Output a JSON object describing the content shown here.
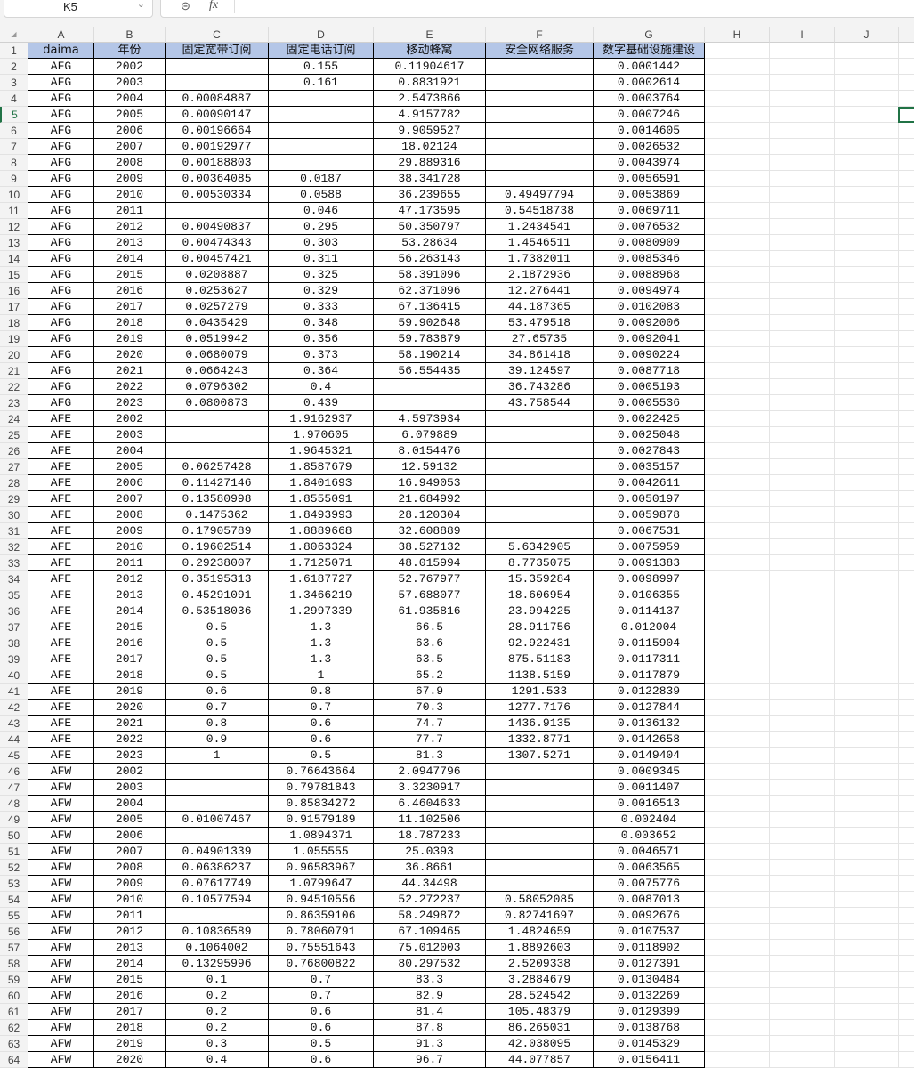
{
  "name_box": "K5",
  "formula_bar": {
    "fx_label": "fx",
    "value": ""
  },
  "columns": [
    "A",
    "B",
    "C",
    "D",
    "E",
    "F",
    "G",
    "H",
    "I",
    "J"
  ],
  "headers": [
    "daima",
    "年份",
    "固定宽带订阅",
    "固定电话订阅",
    "移动蜂窝",
    "安全网络服务",
    "数字基础设施建设"
  ],
  "colors": {
    "header_fill": "#b4c6e7",
    "selection": "#217346"
  },
  "rows": [
    [
      "AFG",
      "2002",
      "",
      "0.155",
      "0.11904617",
      "",
      "0.0001442"
    ],
    [
      "AFG",
      "2003",
      "",
      "0.161",
      "0.8831921",
      "",
      "0.0002614"
    ],
    [
      "AFG",
      "2004",
      "0.00084887",
      "",
      "2.5473866",
      "",
      "0.0003764"
    ],
    [
      "AFG",
      "2005",
      "0.00090147",
      "",
      "4.9157782",
      "",
      "0.0007246"
    ],
    [
      "AFG",
      "2006",
      "0.00196664",
      "",
      "9.9059527",
      "",
      "0.0014605"
    ],
    [
      "AFG",
      "2007",
      "0.00192977",
      "",
      "18.02124",
      "",
      "0.0026532"
    ],
    [
      "AFG",
      "2008",
      "0.00188803",
      "",
      "29.889316",
      "",
      "0.0043974"
    ],
    [
      "AFG",
      "2009",
      "0.00364085",
      "0.0187",
      "38.341728",
      "",
      "0.0056591"
    ],
    [
      "AFG",
      "2010",
      "0.00530334",
      "0.0588",
      "36.239655",
      "0.49497794",
      "0.0053869"
    ],
    [
      "AFG",
      "2011",
      "",
      "0.046",
      "47.173595",
      "0.54518738",
      "0.0069711"
    ],
    [
      "AFG",
      "2012",
      "0.00490837",
      "0.295",
      "50.350797",
      "1.2434541",
      "0.0076532"
    ],
    [
      "AFG",
      "2013",
      "0.00474343",
      "0.303",
      "53.28634",
      "1.4546511",
      "0.0080909"
    ],
    [
      "AFG",
      "2014",
      "0.00457421",
      "0.311",
      "56.263143",
      "1.7382011",
      "0.0085346"
    ],
    [
      "AFG",
      "2015",
      "0.0208887",
      "0.325",
      "58.391096",
      "2.1872936",
      "0.0088968"
    ],
    [
      "AFG",
      "2016",
      "0.0253627",
      "0.329",
      "62.371096",
      "12.276441",
      "0.0094974"
    ],
    [
      "AFG",
      "2017",
      "0.0257279",
      "0.333",
      "67.136415",
      "44.187365",
      "0.0102083"
    ],
    [
      "AFG",
      "2018",
      "0.0435429",
      "0.348",
      "59.902648",
      "53.479518",
      "0.0092006"
    ],
    [
      "AFG",
      "2019",
      "0.0519942",
      "0.356",
      "59.783879",
      "27.65735",
      "0.0092041"
    ],
    [
      "AFG",
      "2020",
      "0.0680079",
      "0.373",
      "58.190214",
      "34.861418",
      "0.0090224"
    ],
    [
      "AFG",
      "2021",
      "0.0664243",
      "0.364",
      "56.554435",
      "39.124597",
      "0.0087718"
    ],
    [
      "AFG",
      "2022",
      "0.0796302",
      "0.4",
      "",
      "36.743286",
      "0.0005193"
    ],
    [
      "AFG",
      "2023",
      "0.0800873",
      "0.439",
      "",
      "43.758544",
      "0.0005536"
    ],
    [
      "AFE",
      "2002",
      "",
      "1.9162937",
      "4.5973934",
      "",
      "0.0022425"
    ],
    [
      "AFE",
      "2003",
      "",
      "1.970605",
      "6.079889",
      "",
      "0.0025048"
    ],
    [
      "AFE",
      "2004",
      "",
      "1.9645321",
      "8.0154476",
      "",
      "0.0027843"
    ],
    [
      "AFE",
      "2005",
      "0.06257428",
      "1.8587679",
      "12.59132",
      "",
      "0.0035157"
    ],
    [
      "AFE",
      "2006",
      "0.11427146",
      "1.8401693",
      "16.949053",
      "",
      "0.0042611"
    ],
    [
      "AFE",
      "2007",
      "0.13580998",
      "1.8555091",
      "21.684992",
      "",
      "0.0050197"
    ],
    [
      "AFE",
      "2008",
      "0.1475362",
      "1.8493993",
      "28.120304",
      "",
      "0.0059878"
    ],
    [
      "AFE",
      "2009",
      "0.17905789",
      "1.8889668",
      "32.608889",
      "",
      "0.0067531"
    ],
    [
      "AFE",
      "2010",
      "0.19602514",
      "1.8063324",
      "38.527132",
      "5.6342905",
      "0.0075959"
    ],
    [
      "AFE",
      "2011",
      "0.29238007",
      "1.7125071",
      "48.015994",
      "8.7735075",
      "0.0091383"
    ],
    [
      "AFE",
      "2012",
      "0.35195313",
      "1.6187727",
      "52.767977",
      "15.359284",
      "0.0098997"
    ],
    [
      "AFE",
      "2013",
      "0.45291091",
      "1.3466219",
      "57.688077",
      "18.606954",
      "0.0106355"
    ],
    [
      "AFE",
      "2014",
      "0.53518036",
      "1.2997339",
      "61.935816",
      "23.994225",
      "0.0114137"
    ],
    [
      "AFE",
      "2015",
      "0.5",
      "1.3",
      "66.5",
      "28.911756",
      "0.012004"
    ],
    [
      "AFE",
      "2016",
      "0.5",
      "1.3",
      "63.6",
      "92.922431",
      "0.0115904"
    ],
    [
      "AFE",
      "2017",
      "0.5",
      "1.3",
      "63.5",
      "875.51183",
      "0.0117311"
    ],
    [
      "AFE",
      "2018",
      "0.5",
      "1",
      "65.2",
      "1138.5159",
      "0.0117879"
    ],
    [
      "AFE",
      "2019",
      "0.6",
      "0.8",
      "67.9",
      "1291.533",
      "0.0122839"
    ],
    [
      "AFE",
      "2020",
      "0.7",
      "0.7",
      "70.3",
      "1277.7176",
      "0.0127844"
    ],
    [
      "AFE",
      "2021",
      "0.8",
      "0.6",
      "74.7",
      "1436.9135",
      "0.0136132"
    ],
    [
      "AFE",
      "2022",
      "0.9",
      "0.6",
      "77.7",
      "1332.8771",
      "0.0142658"
    ],
    [
      "AFE",
      "2023",
      "1",
      "0.5",
      "81.3",
      "1307.5271",
      "0.0149404"
    ],
    [
      "AFW",
      "2002",
      "",
      "0.76643664",
      "2.0947796",
      "",
      "0.0009345"
    ],
    [
      "AFW",
      "2003",
      "",
      "0.79781843",
      "3.3230917",
      "",
      "0.0011407"
    ],
    [
      "AFW",
      "2004",
      "",
      "0.85834272",
      "6.4604633",
      "",
      "0.0016513"
    ],
    [
      "AFW",
      "2005",
      "0.01007467",
      "0.91579189",
      "11.102506",
      "",
      "0.002404"
    ],
    [
      "AFW",
      "2006",
      "",
      "1.0894371",
      "18.787233",
      "",
      "0.003652"
    ],
    [
      "AFW",
      "2007",
      "0.04901339",
      "1.055555",
      "25.0393",
      "",
      "0.0046571"
    ],
    [
      "AFW",
      "2008",
      "0.06386237",
      "0.96583967",
      "36.8661",
      "",
      "0.0063565"
    ],
    [
      "AFW",
      "2009",
      "0.07617749",
      "1.0799647",
      "44.34498",
      "",
      "0.0075776"
    ],
    [
      "AFW",
      "2010",
      "0.10577594",
      "0.94510556",
      "52.272237",
      "0.58052085",
      "0.0087013"
    ],
    [
      "AFW",
      "2011",
      "",
      "0.86359106",
      "58.249872",
      "0.82741697",
      "0.0092676"
    ],
    [
      "AFW",
      "2012",
      "0.10836589",
      "0.78060791",
      "67.109465",
      "1.4824659",
      "0.0107537"
    ],
    [
      "AFW",
      "2013",
      "0.1064002",
      "0.75551643",
      "75.012003",
      "1.8892603",
      "0.0118902"
    ],
    [
      "AFW",
      "2014",
      "0.13295996",
      "0.76800822",
      "80.297532",
      "2.5209338",
      "0.0127391"
    ],
    [
      "AFW",
      "2015",
      "0.1",
      "0.7",
      "83.3",
      "3.2884679",
      "0.0130484"
    ],
    [
      "AFW",
      "2016",
      "0.2",
      "0.7",
      "82.9",
      "28.524542",
      "0.0132269"
    ],
    [
      "AFW",
      "2017",
      "0.2",
      "0.6",
      "81.4",
      "105.48379",
      "0.0129399"
    ],
    [
      "AFW",
      "2018",
      "0.2",
      "0.6",
      "87.8",
      "86.265031",
      "0.0138768"
    ],
    [
      "AFW",
      "2019",
      "0.3",
      "0.5",
      "91.3",
      "42.038095",
      "0.0145329"
    ],
    [
      "AFW",
      "2020",
      "0.4",
      "0.6",
      "96.7",
      "44.077857",
      "0.0156411"
    ]
  ]
}
